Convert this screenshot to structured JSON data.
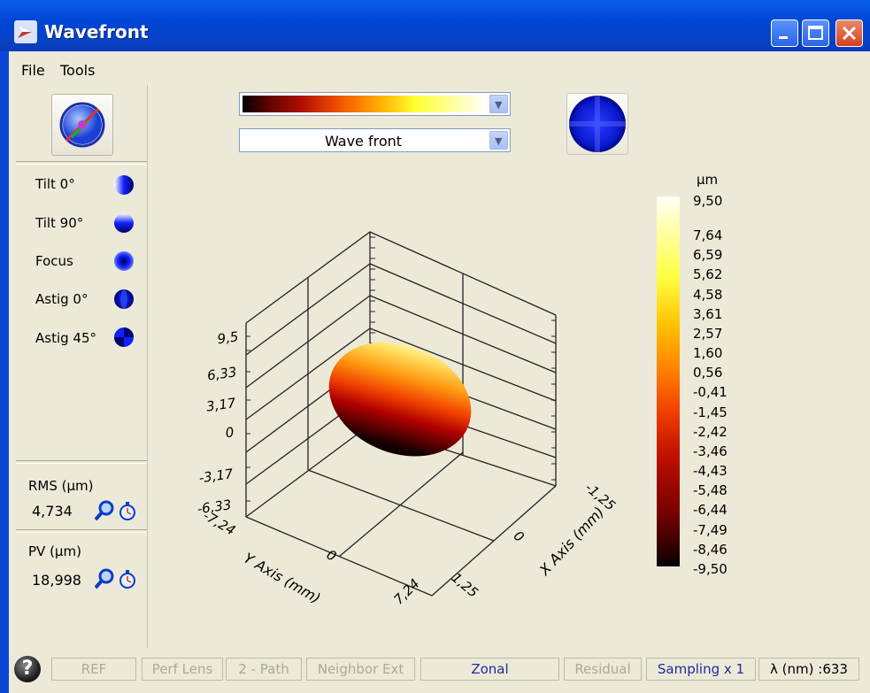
{
  "window": {
    "title": "Wavefront",
    "icon": "app-arrow-icon"
  },
  "menu": {
    "file": "File",
    "tools": "Tools"
  },
  "left_panel": {
    "zernike": [
      {
        "label": "Tilt 0°",
        "icon": "tilt-0-icon"
      },
      {
        "label": "Tilt 90°",
        "icon": "tilt-90-icon"
      },
      {
        "label": "Focus",
        "icon": "focus-icon"
      },
      {
        "label": "Astig 0°",
        "icon": "astig-0-icon"
      },
      {
        "label": "Astig 45°",
        "icon": "astig-45-icon"
      }
    ],
    "rms": {
      "label": "RMS (µm)",
      "value": "4,734"
    },
    "pv": {
      "label": "PV (µm)",
      "value": "18,998"
    }
  },
  "plot": {
    "colormap_select": {
      "selected": ""
    },
    "view_select": {
      "selected": "Wave front"
    },
    "legend": {
      "unit": "µm",
      "ticks": [
        "9,50",
        "7,64",
        "6,59",
        "5,62",
        "4,58",
        "3,61",
        "2,57",
        "1,60",
        "0,56",
        "-0,41",
        "-1,45",
        "-2,42",
        "-3,46",
        "-4,43",
        "-5,48",
        "-6,44",
        "-7,49",
        "-8,46",
        "-9,50"
      ]
    },
    "axes": {
      "z_ticks": [
        "9,5",
        "6,33",
        "3,17",
        "0",
        "-3,17",
        "-6,33"
      ],
      "y_ticks": [
        "-7,24",
        "0",
        "7,24"
      ],
      "x_ticks": [
        "-1,25",
        "0",
        "1,25"
      ],
      "y_label": "Y Axis (mm)",
      "x_label": "X Axis (mm)"
    }
  },
  "status_bar": {
    "ref": "REF",
    "perf_lens": "Perf Lens",
    "path": "2 - Path",
    "neighbor": "Neighbor Ext",
    "zonal": "Zonal",
    "residual": "Residual",
    "sampling": "Sampling x 1",
    "lambda": "λ (nm) :633"
  },
  "colors": {
    "titlebar": "#0A46D6",
    "status_active": "#1e2c9c",
    "status_disabled": "#aca899"
  }
}
